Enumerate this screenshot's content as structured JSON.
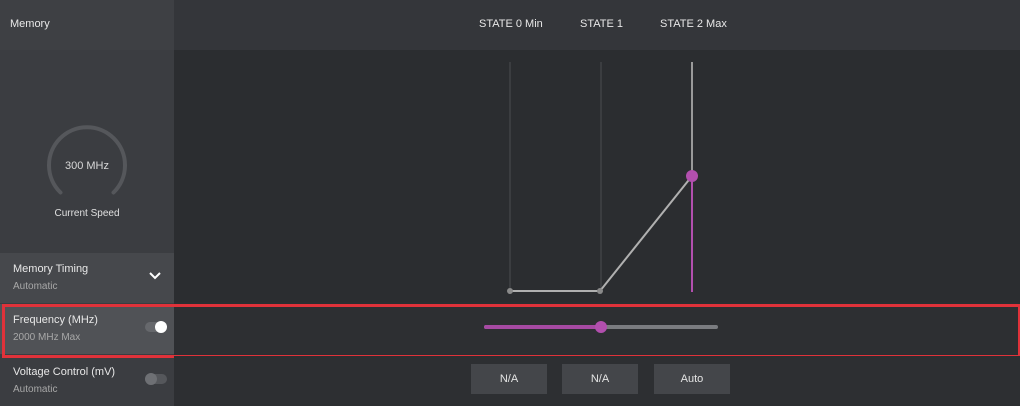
{
  "left": {
    "header": "Memory",
    "gauge": {
      "value": "300 MHz",
      "label": "Current Speed"
    },
    "rows": {
      "timing": {
        "title": "Memory Timing",
        "sub": "Automatic"
      },
      "frequency": {
        "title": "Frequency (MHz)",
        "sub": "2000 MHz Max",
        "toggle_on": true
      },
      "voltage": {
        "title": "Voltage Control (mV)",
        "sub": "Automatic",
        "toggle_on": false
      }
    }
  },
  "states": [
    "STATE 0 Min",
    "STATE 1",
    "STATE 2 Max"
  ],
  "slider": {
    "value_fraction": 0.5
  },
  "buttons": [
    "N/A",
    "N/A",
    "Auto"
  ],
  "colors": {
    "accent": "#b24fae",
    "highlight": "#e0323a"
  }
}
